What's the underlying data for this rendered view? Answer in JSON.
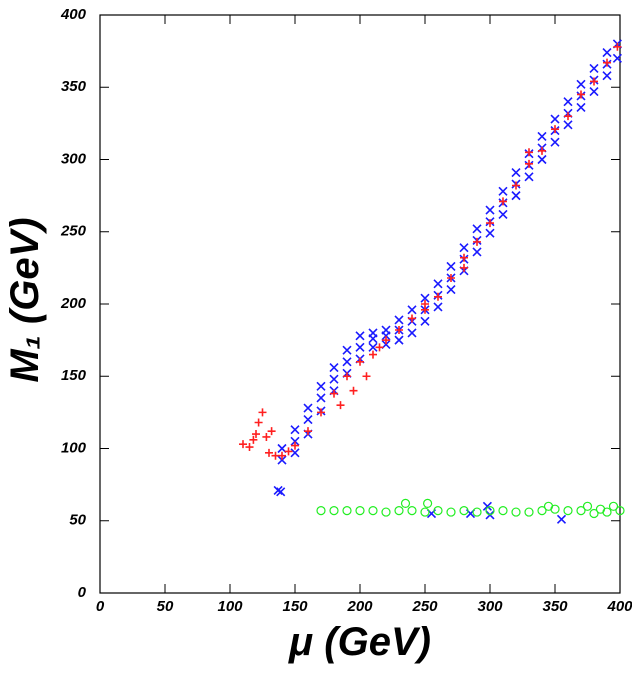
{
  "chart_data": {
    "type": "scatter",
    "xlabel": "μ (GeV)",
    "ylabel": "M₁ (GeV)",
    "xlim": [
      0,
      400
    ],
    "ylim": [
      0,
      400
    ],
    "xticks": [
      0,
      50,
      100,
      150,
      200,
      250,
      300,
      350,
      400
    ],
    "yticks": [
      0,
      50,
      100,
      150,
      200,
      250,
      300,
      350,
      400
    ],
    "series": [
      {
        "color": "#1a1aff",
        "marker": "x",
        "x": [
          140,
          140,
          150,
          150,
          150,
          160,
          160,
          160,
          170,
          170,
          170,
          180,
          180,
          180,
          190,
          190,
          190,
          200,
          200,
          200,
          210,
          210,
          210,
          220,
          220,
          220,
          230,
          230,
          230,
          240,
          240,
          240,
          250,
          250,
          250,
          260,
          260,
          260,
          270,
          270,
          270,
          280,
          280,
          280,
          290,
          290,
          290,
          300,
          300,
          300,
          310,
          310,
          310,
          320,
          320,
          320,
          330,
          330,
          330,
          340,
          340,
          340,
          350,
          350,
          350,
          360,
          360,
          360,
          370,
          370,
          370,
          380,
          380,
          380,
          390,
          390,
          390,
          398,
          398,
          137,
          139,
          255,
          285,
          298,
          300,
          355
        ],
        "values": [
          92,
          100,
          97,
          105,
          113,
          110,
          120,
          128,
          126,
          135,
          143,
          140,
          148,
          156,
          152,
          160,
          168,
          162,
          170,
          178,
          170,
          176,
          180,
          172,
          178,
          182,
          175,
          182,
          189,
          180,
          188,
          196,
          188,
          196,
          204,
          198,
          206,
          214,
          210,
          218,
          226,
          223,
          231,
          239,
          236,
          244,
          252,
          249,
          257,
          265,
          262,
          270,
          278,
          275,
          283,
          291,
          288,
          296,
          304,
          300,
          308,
          316,
          312,
          320,
          328,
          324,
          332,
          340,
          336,
          344,
          352,
          347,
          355,
          363,
          358,
          366,
          374,
          370,
          380,
          71,
          70,
          55,
          55,
          60,
          54,
          51
        ]
      },
      {
        "color": "#ff2020",
        "marker": "+",
        "x": [
          110,
          115,
          120,
          122,
          125,
          128,
          130,
          135,
          140,
          145,
          150,
          160,
          170,
          180,
          185,
          190,
          195,
          200,
          205,
          210,
          215,
          220,
          230,
          240,
          250,
          260,
          270,
          280,
          290,
          300,
          310,
          320,
          330,
          340,
          350,
          360,
          370,
          380,
          390,
          398,
          330,
          280,
          250,
          118,
          132
        ],
        "values": [
          103,
          101,
          110,
          118,
          125,
          108,
          97,
          95,
          95,
          98,
          102,
          112,
          125,
          138,
          130,
          150,
          140,
          160,
          150,
          165,
          170,
          175,
          182,
          190,
          196,
          205,
          218,
          232,
          243,
          256,
          271,
          282,
          297,
          306,
          321,
          330,
          345,
          354,
          367,
          378,
          305,
          225,
          200,
          106,
          112
        ]
      },
      {
        "color": "#22ee22",
        "marker": "o",
        "x": [
          170,
          180,
          190,
          200,
          210,
          220,
          230,
          235,
          240,
          250,
          252,
          260,
          270,
          280,
          290,
          300,
          310,
          320,
          330,
          340,
          345,
          350,
          360,
          370,
          375,
          380,
          385,
          390,
          395,
          400
        ],
        "values": [
          57,
          57,
          57,
          57,
          57,
          56,
          57,
          62,
          57,
          56,
          62,
          57,
          56,
          57,
          56,
          57,
          57,
          56,
          56,
          57,
          60,
          58,
          57,
          57,
          60,
          55,
          58,
          56,
          60,
          57
        ]
      }
    ]
  }
}
